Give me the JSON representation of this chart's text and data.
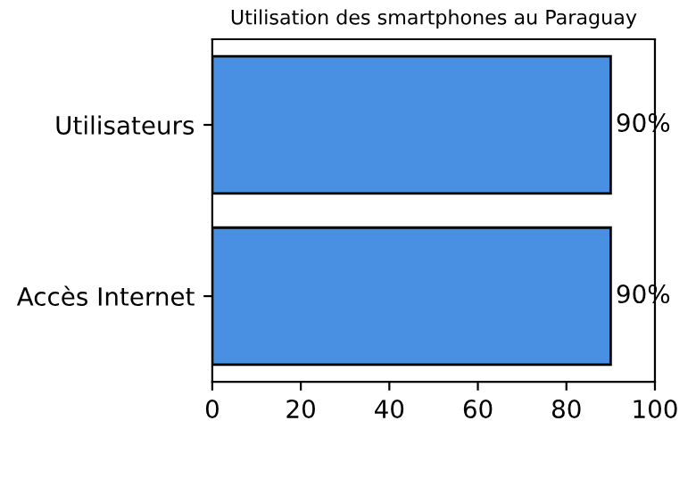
{
  "chart_data": {
    "type": "bar",
    "orientation": "horizontal",
    "title": "Utilisation des smartphones au Paraguay",
    "categories": [
      "Utilisateurs",
      "Accès Internet"
    ],
    "values": [
      90,
      90
    ],
    "value_labels": [
      "90%",
      "90%"
    ],
    "color": "#4a90e2",
    "xlim": [
      0,
      100
    ],
    "xticks": [
      0,
      20,
      40,
      60,
      80,
      100
    ],
    "grid": false,
    "legend": false
  }
}
